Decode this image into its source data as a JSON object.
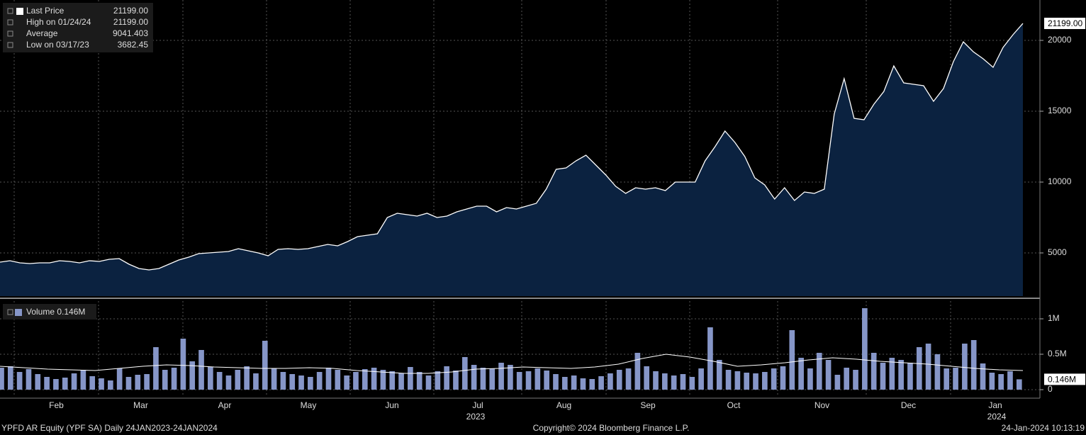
{
  "chart_data": [
    {
      "type": "area",
      "color": "#0b2240",
      "line_color": "#ffffff",
      "legend": [
        {
          "name": "Last Price",
          "value": "21199.00"
        },
        {
          "name": "High on 01/24/24",
          "value": "21199.00"
        },
        {
          "name": "Average",
          "value": "9041.403"
        },
        {
          "name": "Low on 03/17/23",
          "value": "3682.45"
        }
      ],
      "values": [
        4350,
        4450,
        4300,
        4250,
        4300,
        4300,
        4450,
        4400,
        4300,
        4450,
        4400,
        4550,
        4600,
        4200,
        3900,
        3800,
        3900,
        4200,
        4500,
        4700,
        4950,
        5000,
        5050,
        5100,
        5300,
        5150,
        5000,
        4800,
        5250,
        5300,
        5250,
        5300,
        5450,
        5600,
        5500,
        5800,
        6150,
        6250,
        6350,
        7500,
        7800,
        7700,
        7600,
        7800,
        7500,
        7600,
        7900,
        8100,
        8300,
        8300,
        7900,
        8200,
        8100,
        8300,
        8500,
        9500,
        10900,
        11000,
        11500,
        11900,
        11200,
        10500,
        9700,
        9200,
        9600,
        9500,
        9600,
        9400,
        10000,
        10000,
        10000,
        11500,
        12500,
        13600,
        12800,
        11800,
        10300,
        9800,
        8800,
        9600,
        8700,
        9300,
        9200,
        9500,
        14800,
        17300,
        14500,
        14400,
        15500,
        16400,
        18200,
        17000,
        16900,
        16800,
        15700,
        16600,
        18500,
        19900,
        19200,
        18700,
        18100,
        19500,
        20400,
        21199
      ],
      "last_tag": {
        "value": 21199,
        "label": "21199.00"
      },
      "ylim": [
        1950,
        22850
      ],
      "yticks": [
        5000,
        10000,
        15000,
        20000
      ],
      "grid": true
    },
    {
      "type": "bar",
      "color": "#8696c8",
      "line_color": "#ffffff",
      "legend": [
        {
          "name": "Volume 0.146M"
        }
      ],
      "values": [
        310000,
        330000,
        250000,
        290000,
        220000,
        180000,
        150000,
        170000,
        230000,
        280000,
        190000,
        160000,
        130000,
        300000,
        180000,
        210000,
        220000,
        600000,
        280000,
        310000,
        720000,
        400000,
        560000,
        320000,
        250000,
        200000,
        280000,
        330000,
        230000,
        690000,
        300000,
        250000,
        220000,
        200000,
        180000,
        250000,
        310000,
        280000,
        200000,
        250000,
        290000,
        310000,
        280000,
        260000,
        230000,
        320000,
        250000,
        200000,
        260000,
        330000,
        270000,
        460000,
        350000,
        310000,
        300000,
        380000,
        350000,
        250000,
        260000,
        300000,
        270000,
        220000,
        180000,
        200000,
        160000,
        150000,
        190000,
        230000,
        280000,
        300000,
        520000,
        330000,
        260000,
        230000,
        200000,
        220000,
        180000,
        300000,
        880000,
        420000,
        280000,
        260000,
        240000,
        230000,
        250000,
        300000,
        330000,
        840000,
        450000,
        300000,
        520000,
        420000,
        210000,
        310000,
        280000,
        1150000,
        520000,
        380000,
        450000,
        420000,
        380000,
        600000,
        650000,
        500000,
        300000,
        310000,
        650000,
        700000,
        370000,
        240000,
        220000,
        260000,
        146000
      ],
      "average": [
        330000,
        310000,
        290000,
        280000,
        270000,
        300000,
        330000,
        350000,
        340000,
        320000,
        310000,
        300000,
        300000,
        310000,
        300000,
        270000,
        250000,
        230000,
        230000,
        250000,
        290000,
        300000,
        320000,
        310000,
        300000,
        320000,
        360000,
        440000,
        500000,
        460000,
        400000,
        330000,
        350000,
        380000,
        420000,
        450000,
        430000,
        400000,
        380000,
        360000,
        330000,
        300000,
        280000,
        270000
      ],
      "last_tag": {
        "value": 146000,
        "label": "0.146M"
      },
      "ylim": [
        -100000,
        1250000
      ],
      "yticks": [
        {
          "value": 0,
          "label": "0"
        },
        {
          "value": 500000,
          "label": "0.5M"
        },
        {
          "value": 1000000,
          "label": "1M"
        }
      ],
      "grid": true
    }
  ],
  "x_labels": [
    "Feb",
    "Mar",
    "Apr",
    "May",
    "Jun",
    "Jul",
    "Aug",
    "Sep",
    "Oct",
    "Nov",
    "Dec",
    "Jan"
  ],
  "year_labels": [
    "2023",
    "2024"
  ],
  "footer": {
    "left": "YPFD AR Equity (YPF SA)  Daily 24JAN2023-24JAN2024",
    "center": "Copyright© 2024 Bloomberg Finance L.P.",
    "right": "24-Jan-2024 10:13:19"
  }
}
